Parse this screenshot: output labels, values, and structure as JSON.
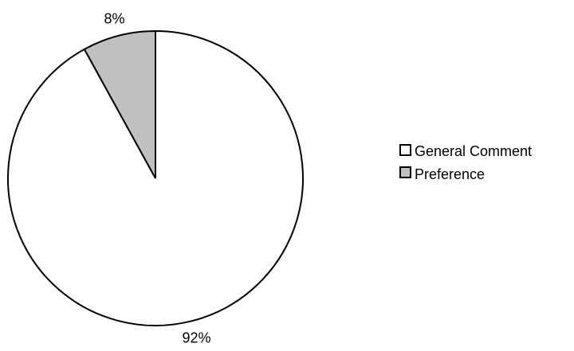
{
  "chart_data": {
    "type": "pie",
    "title": "",
    "categories": [
      "General Comment",
      "Preference"
    ],
    "values": [
      92,
      8
    ],
    "data_labels": [
      "92%",
      "8%"
    ],
    "colors": [
      "#ffffff",
      "#c0c0c0"
    ],
    "legend": {
      "placement": "right",
      "entries": [
        "General Comment",
        "Preference"
      ]
    }
  }
}
